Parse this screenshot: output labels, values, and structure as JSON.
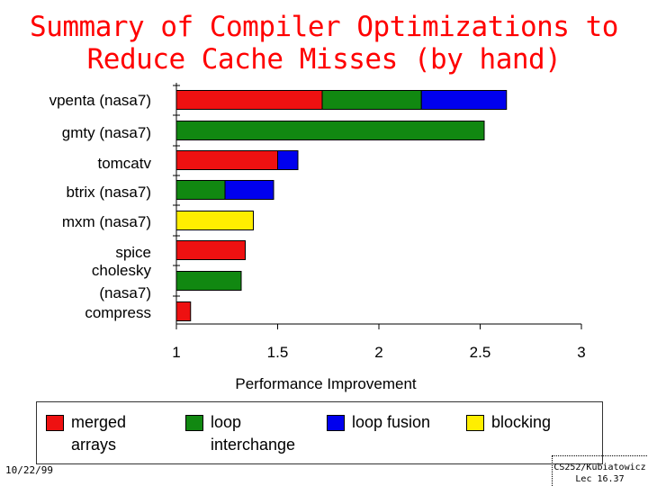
{
  "chart_data": {
    "type": "bar",
    "orientation": "horizontal",
    "stacked": true,
    "title": "Summary of Compiler Optimizations to Reduce Cache Misses (by hand)",
    "title_lines": [
      "Summary of Compiler Optimizations to",
      "Reduce Cache Misses (by hand)"
    ],
    "xlabel": "Performance Improvement",
    "ylabel": "",
    "xlim": [
      1,
      3
    ],
    "xticks": [
      "1",
      "1.5",
      "2",
      "2.5",
      "3"
    ],
    "grid": false,
    "legend_position": "bottom",
    "categories": [
      {
        "label": "vpenta (nasa7)",
        "segments": [
          {
            "series": "merged arrays",
            "start": 1.0,
            "end": 1.72
          },
          {
            "series": "loop interchange",
            "start": 1.72,
            "end": 2.21
          },
          {
            "series": "loop fusion",
            "start": 2.21,
            "end": 2.63
          }
        ]
      },
      {
        "label": "gmty (nasa7)",
        "segments": [
          {
            "series": "loop interchange",
            "start": 1.0,
            "end": 2.52
          }
        ]
      },
      {
        "label": "tomcatv",
        "segments": [
          {
            "series": "merged arrays",
            "start": 1.0,
            "end": 1.5
          },
          {
            "series": "loop fusion",
            "start": 1.5,
            "end": 1.6
          }
        ]
      },
      {
        "label": "btrix (nasa7)",
        "segments": [
          {
            "series": "loop interchange",
            "start": 1.0,
            "end": 1.24
          },
          {
            "series": "loop fusion",
            "start": 1.24,
            "end": 1.48
          }
        ]
      },
      {
        "label": "mxm (nasa7)",
        "segments": [
          {
            "series": "blocking",
            "start": 1.0,
            "end": 1.38
          }
        ]
      },
      {
        "label": "spice",
        "segments": [
          {
            "series": "merged arrays",
            "start": 1.0,
            "end": 1.34
          }
        ]
      },
      {
        "label": "cholesky (nasa7)",
        "segments": [
          {
            "series": "loop interchange",
            "start": 1.0,
            "end": 1.32
          }
        ]
      },
      {
        "label": "compress",
        "segments": [
          {
            "series": "merged arrays",
            "start": 1.0,
            "end": 1.07
          }
        ]
      }
    ],
    "series": [
      {
        "name": "merged arrays",
        "color": "#ee1111"
      },
      {
        "name": "loop interchange",
        "color": "#118811"
      },
      {
        "name": "loop fusion",
        "color": "#0000ee"
      },
      {
        "name": "blocking",
        "color": "#ffee00"
      }
    ]
  },
  "legend": {
    "items": [
      {
        "label": "merged\narrays",
        "color": "#ee1111"
      },
      {
        "label": "loop\ninterchange",
        "color": "#118811"
      },
      {
        "label": "loop fusion",
        "color": "#0000ee"
      },
      {
        "label": "blocking",
        "color": "#ffee00"
      }
    ]
  },
  "footer": {
    "date": "10/22/99",
    "course": "CS252/Kubiatowicz",
    "lecture": "Lec 16.37"
  }
}
